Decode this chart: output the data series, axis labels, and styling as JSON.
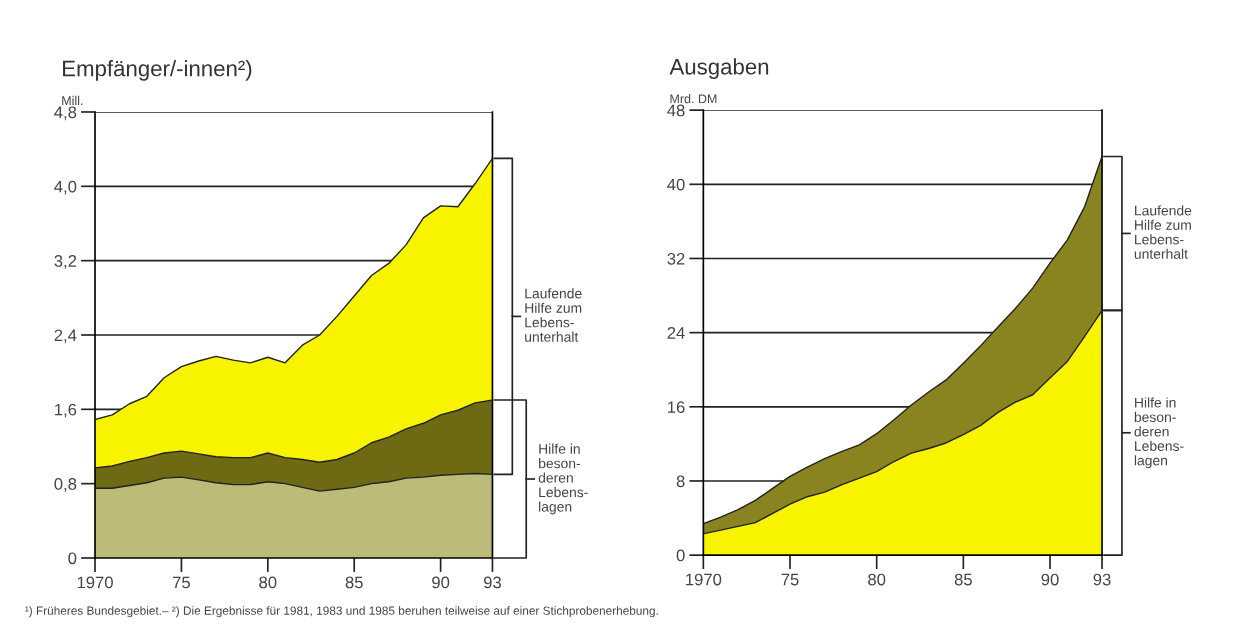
{
  "chart_data": [
    {
      "type": "area",
      "stacked": true,
      "title": "Empfänger/-innen²)",
      "ylabel": "Mill.",
      "x": [
        1970,
        1971,
        1972,
        1973,
        1974,
        1975,
        1976,
        1977,
        1978,
        1979,
        1980,
        1981,
        1982,
        1983,
        1984,
        1985,
        1986,
        1987,
        1988,
        1989,
        1990,
        1991,
        1992,
        1993
      ],
      "series": [
        {
          "color": "#bcbc78",
          "values": [
            0.75,
            0.75,
            0.78,
            0.81,
            0.86,
            0.87,
            0.84,
            0.81,
            0.79,
            0.79,
            0.82,
            0.8,
            0.76,
            0.72,
            0.74,
            0.76,
            0.8,
            0.82,
            0.86,
            0.87,
            0.89,
            0.9,
            0.91,
            0.9
          ]
        },
        {
          "color": "#6e6a14",
          "values": [
            0.22,
            0.24,
            0.26,
            0.27,
            0.27,
            0.28,
            0.28,
            0.28,
            0.29,
            0.29,
            0.31,
            0.28,
            0.3,
            0.31,
            0.32,
            0.37,
            0.44,
            0.48,
            0.53,
            0.58,
            0.65,
            0.69,
            0.76,
            0.8
          ]
        },
        {
          "color": "#f8f400",
          "values": [
            0.52,
            0.55,
            0.62,
            0.66,
            0.81,
            0.91,
            1.0,
            1.08,
            1.05,
            1.02,
            1.03,
            1.02,
            1.23,
            1.37,
            1.54,
            1.69,
            1.8,
            1.87,
            1.98,
            2.21,
            2.25,
            2.19,
            2.36,
            2.6
          ]
        }
      ],
      "xlim": [
        1970,
        1993
      ],
      "xticks": [
        1970,
        {
          "value": 1975,
          "label": "75"
        },
        {
          "value": 1980,
          "label": "80"
        },
        {
          "value": 1985,
          "label": "85"
        },
        {
          "value": 1990,
          "label": "90"
        },
        {
          "value": 1993,
          "label": "93"
        }
      ],
      "ylim": [
        0,
        4.8
      ],
      "yticks": [
        {
          "value": 0,
          "label": "0"
        },
        {
          "value": 0.8,
          "label": "0,8"
        },
        {
          "value": 1.6,
          "label": "1,6"
        },
        {
          "value": 2.4,
          "label": "2,4"
        },
        {
          "value": 3.2,
          "label": "3,2"
        },
        {
          "value": 4.0,
          "label": "4,0"
        },
        {
          "value": 4.8,
          "label": "4,8"
        }
      ],
      "grid": "y",
      "annotations": [
        "Laufende\nHilfe zum\nLebens-\nunterhalt",
        "Hilfe in\nbeson-\nderen\nLebens-\nlagen",
        "¹) Früheres Bundesgebiet.– ²) Die Ergebnisse für 1981, 1983 und 1985 beruhen teilweise auf einer Stichprobenerhebung."
      ]
    },
    {
      "type": "area",
      "stacked": true,
      "title": "Ausgaben",
      "ylabel": "Mrd. DM",
      "x": [
        1970,
        1971,
        1972,
        1973,
        1974,
        1975,
        1976,
        1977,
        1978,
        1979,
        1980,
        1981,
        1982,
        1983,
        1984,
        1985,
        1986,
        1987,
        1988,
        1989,
        1990,
        1991,
        1992,
        1993
      ],
      "series": [
        {
          "color": "#f8f400",
          "values": [
            2.3,
            2.7,
            3.1,
            3.5,
            4.5,
            5.5,
            6.3,
            6.8,
            7.6,
            8.3,
            9.0,
            10.1,
            11.0,
            11.5,
            12.1,
            13.0,
            14.0,
            15.4,
            16.5,
            17.3,
            19.1,
            20.9,
            23.6,
            26.4
          ]
        },
        {
          "color": "#8a8420",
          "values": [
            1.1,
            1.4,
            1.8,
            2.4,
            2.7,
            3.0,
            3.2,
            3.6,
            3.6,
            3.6,
            4.1,
            4.5,
            5.2,
            6.1,
            6.8,
            7.7,
            8.6,
            9.2,
            10.1,
            11.5,
            12.4,
            13.1,
            14.0,
            16.6
          ]
        }
      ],
      "xlim": [
        1970,
        1993
      ],
      "xticks": [
        1970,
        {
          "value": 1975,
          "label": "75"
        },
        {
          "value": 1980,
          "label": "80"
        },
        {
          "value": 1985,
          "label": "85"
        },
        {
          "value": 1990,
          "label": "90"
        },
        {
          "value": 1993,
          "label": "93"
        }
      ],
      "ylim": [
        0,
        48
      ],
      "yticks": [
        0,
        8,
        16,
        24,
        32,
        40,
        48
      ],
      "grid": "y",
      "annotations": [
        "Laufende\nHilfe zum\nLebens-\nunterhalt",
        "Hilfe in\nbeson-\nderen\nLebens-\nlagen"
      ]
    }
  ]
}
